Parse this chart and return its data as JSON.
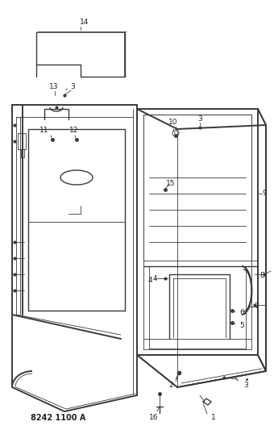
{
  "title": "8242 1100 A",
  "bg_color": "#ffffff",
  "line_color": "#3a3a3a",
  "label_color": "#222222",
  "figsize": [
    3.4,
    5.33
  ],
  "dpi": 100
}
